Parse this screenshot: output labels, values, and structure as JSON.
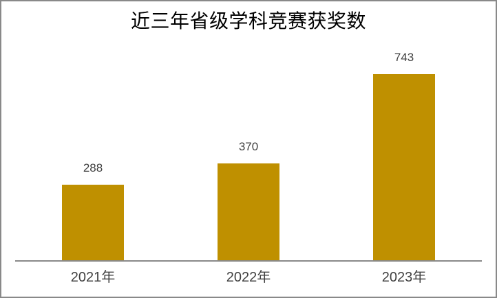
{
  "window": {
    "background": "#FFFFFF",
    "border_color": "#898989"
  },
  "chart_data": {
    "type": "bar",
    "title": "近三年省级学科竞赛获奖数",
    "categories": [
      "2021年",
      "2022年",
      "2023年"
    ],
    "values": [
      288,
      370,
      743
    ],
    "data_labels": [
      "288",
      "370",
      "743"
    ],
    "series": [
      {
        "name": "获奖数",
        "values": [
          288,
          370,
          743
        ]
      }
    ],
    "bar_color": "#BF9000",
    "axis_color": "#898989",
    "title_color": "#000000",
    "label_color": "#404040",
    "xlabel": "",
    "ylabel": "",
    "ylim": [
      0,
      800
    ],
    "grid": false,
    "legend": "none",
    "y_axis_visible": false,
    "data_labels_position": "outside-end"
  }
}
